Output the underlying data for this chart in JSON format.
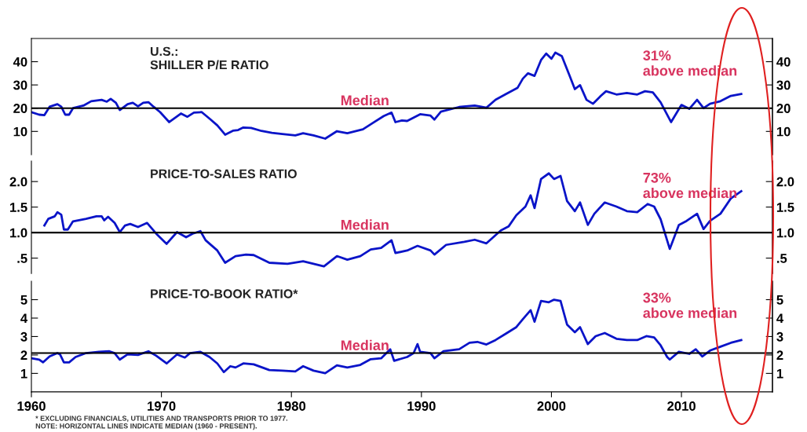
{
  "chart_data": [
    {
      "type": "line",
      "title": "U.S.:\nSHILLER P/E RATIO",
      "xlim": [
        1960,
        2017
      ],
      "xticks": [
        1960,
        1970,
        1980,
        1990,
        2000,
        2010
      ],
      "ylim": [
        0,
        50
      ],
      "yticks": [
        10,
        20,
        30,
        40
      ],
      "y2lim": [
        0,
        50
      ],
      "y2ticks": [
        10,
        20,
        30,
        40
      ],
      "tick_labels": "y",
      "grid": false,
      "x": [
        1960.0,
        1960.6,
        1961.0,
        1961.4,
        1962.0,
        1962.3,
        1962.6,
        1962.9,
        1963.2,
        1964.0,
        1964.6,
        1965.4,
        1965.8,
        1966.1,
        1966.5,
        1966.8,
        1967.4,
        1967.8,
        1968.2,
        1968.6,
        1969.0,
        1969.4,
        1969.9,
        1970.6,
        1971.5,
        1972.0,
        1972.5,
        1973.1,
        1973.7,
        1974.3,
        1974.9,
        1975.5,
        1975.9,
        1976.3,
        1976.9,
        1977.7,
        1978.5,
        1979.3,
        1980.3,
        1980.9,
        1981.7,
        1982.6,
        1983.5,
        1984.3,
        1985.5,
        1986.3,
        1987.1,
        1987.7,
        1988.0,
        1988.5,
        1988.9,
        1989.9,
        1990.7,
        1991.0,
        1991.5,
        1992.9,
        1994.1,
        1995.0,
        1995.7,
        1996.5,
        1997.4,
        1997.8,
        1998.2,
        1998.7,
        1999.2,
        1999.6,
        2000.0,
        2000.3,
        2000.8,
        2001.4,
        2001.8,
        2002.2,
        2002.7,
        2003.2,
        2003.8,
        2004.2,
        2005.0,
        2005.8,
        2006.6,
        2007.2,
        2007.8,
        2008.4,
        2009.2,
        2010.0,
        2010.6,
        2011.2,
        2011.7,
        2012.2,
        2013.0,
        2013.8,
        2014.6
      ],
      "series": [
        {
          "color": "#0a14c8",
          "values": [
            18.3,
            17.2,
            17,
            20.6,
            21.7,
            20.6,
            17.2,
            17.2,
            20,
            21.1,
            23,
            23.6,
            22.8,
            24,
            22.3,
            19.2,
            21.7,
            22.3,
            20.8,
            22.3,
            22.6,
            20.6,
            18.3,
            14,
            17.7,
            16.3,
            18.1,
            18.3,
            15.5,
            12.6,
            8.6,
            10.3,
            10.6,
            11.7,
            11.5,
            10.2,
            9.4,
            8.9,
            8.3,
            9.2,
            8.3,
            6.9,
            10.1,
            9.2,
            10.9,
            13.8,
            16.6,
            18.1,
            14,
            14.7,
            14.5,
            17.4,
            16.8,
            15.1,
            18.5,
            20.5,
            21.1,
            20.2,
            23.6,
            26.1,
            28.8,
            32.7,
            35,
            33.9,
            40.7,
            43.5,
            41.3,
            43.9,
            42.4,
            33.9,
            28.2,
            29.9,
            23.6,
            21.9,
            25.3,
            27.3,
            25.9,
            26.5,
            25.9,
            27.3,
            26.8,
            22.5,
            14,
            21.4,
            19.7,
            23.6,
            20,
            21.9,
            23,
            25.3,
            26.1
          ]
        }
      ],
      "ref_lines": [
        {
          "axis": "y",
          "value": 20,
          "label": "Median",
          "color": "#000000"
        }
      ],
      "annotations": [
        "31%\nabove median"
      ]
    },
    {
      "type": "line",
      "title": "PRICE-TO-SALES RATIO",
      "xlim": [
        1960,
        2017
      ],
      "xticks": [
        1960,
        1970,
        1980,
        1990,
        2000,
        2010
      ],
      "ylim": [
        0.2,
        2.4
      ],
      "yticks": [
        {
          "value": 0.5,
          "label": ".5"
        },
        {
          "value": 1.0,
          "label": "1.0"
        },
        {
          "value": 1.5,
          "label": "1.5"
        },
        {
          "value": 2.0,
          "label": "2.0"
        }
      ],
      "y2lim": [
        0.2,
        2.4
      ],
      "y2ticks": [
        {
          "value": 0.5,
          "label": ".5"
        },
        {
          "value": 1.0,
          "label": "1.0"
        },
        {
          "value": 1.5,
          "label": "1.5"
        },
        {
          "value": 2.0,
          "label": "2.0"
        }
      ],
      "tick_labels": "y",
      "grid": false,
      "x": [
        1961.0,
        1961.3,
        1961.8,
        1962.0,
        1962.3,
        1962.5,
        1962.8,
        1963.2,
        1964.2,
        1965.0,
        1965.4,
        1965.6,
        1965.9,
        1966.4,
        1966.8,
        1967.2,
        1967.6,
        1968.2,
        1968.9,
        1969.6,
        1970.4,
        1971.2,
        1971.9,
        1972.4,
        1973.0,
        1973.4,
        1974.3,
        1974.9,
        1975.7,
        1976.5,
        1977.1,
        1978.3,
        1979.7,
        1980.9,
        1981.7,
        1982.5,
        1983.5,
        1984.3,
        1985.3,
        1986.1,
        1986.9,
        1987.7,
        1988.0,
        1988.9,
        1989.7,
        1990.7,
        1991.0,
        1991.9,
        1993.3,
        1994.1,
        1995.0,
        1996.1,
        1996.7,
        1997.3,
        1998.0,
        1998.4,
        1998.7,
        1999.2,
        1999.8,
        2000.2,
        2000.7,
        2001.2,
        2001.8,
        2002.2,
        2002.8,
        2003.3,
        2004.1,
        2005.0,
        2005.8,
        2006.6,
        2007.4,
        2007.9,
        2008.4,
        2009.1,
        2009.8,
        2010.4,
        2011.2,
        2011.7,
        2012.2,
        2013.0,
        2013.8,
        2014.6
      ],
      "series": [
        {
          "color": "#0a14c8",
          "values": [
            1.14,
            1.27,
            1.32,
            1.4,
            1.35,
            1.06,
            1.06,
            1.22,
            1.27,
            1.32,
            1.32,
            1.24,
            1.31,
            1.19,
            1.01,
            1.14,
            1.17,
            1.11,
            1.19,
            0.98,
            0.78,
            1.01,
            0.91,
            0.98,
            1.03,
            0.85,
            0.65,
            0.41,
            0.54,
            0.57,
            0.56,
            0.41,
            0.39,
            0.44,
            0.39,
            0.34,
            0.54,
            0.47,
            0.54,
            0.67,
            0.7,
            0.85,
            0.6,
            0.65,
            0.74,
            0.65,
            0.57,
            0.76,
            0.82,
            0.86,
            0.79,
            1.04,
            1.12,
            1.34,
            1.51,
            1.73,
            1.48,
            2.05,
            2.16,
            2.05,
            2.11,
            1.62,
            1.42,
            1.59,
            1.15,
            1.37,
            1.59,
            1.51,
            1.42,
            1.4,
            1.56,
            1.51,
            1.26,
            0.68,
            1.15,
            1.23,
            1.37,
            1.07,
            1.23,
            1.37,
            1.67,
            1.81
          ]
        }
      ],
      "ref_lines": [
        {
          "axis": "y",
          "value": 1.0,
          "label": "Median",
          "color": "#000000"
        }
      ],
      "annotations": [
        "73%\nabove median"
      ]
    },
    {
      "type": "line",
      "title": "PRICE-TO-BOOK RATIO*",
      "xlim": [
        1960,
        2017
      ],
      "xticks": [
        1960,
        1970,
        1980,
        1990,
        2000,
        2010
      ],
      "ylim": [
        0,
        6
      ],
      "yticks": [
        1,
        2,
        3,
        4,
        5
      ],
      "y2lim": [
        0,
        6
      ],
      "y2ticks": [
        1,
        2,
        3,
        4,
        5
      ],
      "grid": false,
      "x": [
        1960.0,
        1960.6,
        1960.9,
        1961.4,
        1962.0,
        1962.2,
        1962.5,
        1962.9,
        1963.4,
        1964.2,
        1965.2,
        1966.0,
        1966.4,
        1966.8,
        1967.4,
        1968.2,
        1969.0,
        1969.6,
        1970.4,
        1971.2,
        1971.8,
        1972.2,
        1973.0,
        1973.7,
        1974.3,
        1974.8,
        1975.3,
        1975.7,
        1976.3,
        1977.1,
        1978.3,
        1979.3,
        1980.3,
        1980.9,
        1981.7,
        1982.6,
        1983.5,
        1984.3,
        1985.3,
        1986.1,
        1986.9,
        1987.6,
        1987.9,
        1988.9,
        1989.4,
        1989.7,
        1989.9,
        1990.7,
        1991.0,
        1991.7,
        1992.9,
        1993.7,
        1994.3,
        1995.0,
        1995.7,
        1996.5,
        1997.3,
        1997.8,
        1998.4,
        1998.7,
        1999.2,
        1999.8,
        2000.2,
        2000.7,
        2001.2,
        2001.8,
        2002.2,
        2002.8,
        2003.4,
        2004.1,
        2005.0,
        2005.8,
        2006.6,
        2007.3,
        2007.9,
        2008.4,
        2008.9,
        2009.1,
        2009.8,
        2010.6,
        2011.1,
        2011.6,
        2012.2,
        2013.0,
        2013.8,
        2014.6
      ],
      "series": [
        {
          "color": "#0a14c8",
          "values": [
            1.82,
            1.75,
            1.6,
            1.92,
            2.1,
            2.03,
            1.6,
            1.6,
            1.89,
            2.1,
            2.17,
            2.2,
            2.1,
            1.75,
            2.03,
            2.0,
            2.2,
            1.96,
            1.54,
            2.03,
            1.86,
            2.1,
            2.17,
            1.89,
            1.54,
            1.07,
            1.39,
            1.32,
            1.54,
            1.49,
            1.18,
            1.15,
            1.11,
            1.39,
            1.15,
            1.01,
            1.44,
            1.32,
            1.46,
            1.77,
            1.82,
            2.31,
            1.68,
            1.89,
            2.1,
            2.59,
            2.17,
            2.1,
            1.82,
            2.2,
            2.31,
            2.66,
            2.71,
            2.57,
            2.81,
            3.16,
            3.51,
            3.94,
            4.43,
            3.8,
            4.93,
            4.86,
            5.0,
            4.93,
            3.65,
            3.23,
            3.51,
            2.59,
            3.02,
            3.19,
            2.88,
            2.81,
            2.81,
            3.02,
            2.95,
            2.52,
            1.89,
            1.75,
            2.17,
            2.06,
            2.31,
            1.92,
            2.24,
            2.45,
            2.66,
            2.81
          ]
        }
      ],
      "ref_lines": [
        {
          "axis": "y",
          "value": 2.1,
          "label": "Median",
          "color": "#000000"
        }
      ],
      "annotations": [
        "33%\nabove median",
        "* EXCLUDING FINANCIALS, UTILITIES AND TRANSPORTS PRIOR TO 1977.\nNOTE: HORIZONTAL LINES INDICATE MEDIAN (1960 - PRESENT)."
      ]
    }
  ]
}
